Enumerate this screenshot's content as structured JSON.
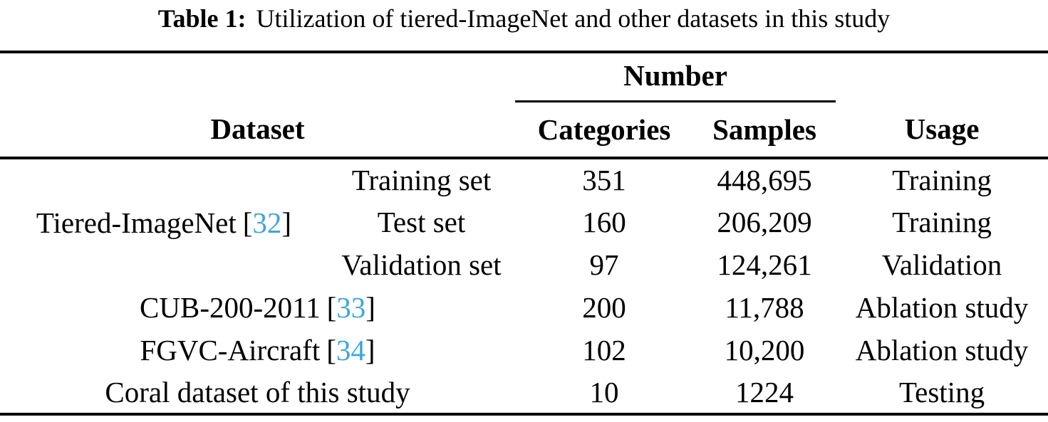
{
  "caption": {
    "label": "Table 1:",
    "text": "Utilization of tiered-ImageNet and other datasets in this study"
  },
  "colors": {
    "citation_blue": "#3ea6dd",
    "text": "#000000",
    "rule": "#000000",
    "background": "#ffffff"
  },
  "table": {
    "headers": {
      "dataset": "Dataset",
      "number": "Number",
      "categories": "Categories",
      "samples": "Samples",
      "usage": "Usage"
    },
    "rows": [
      {
        "dataset": "Tiered-ImageNet",
        "cite_open": "[",
        "ref": "32",
        "cite_close": "]",
        "subset": "Training set",
        "categories": "351",
        "samples": "448,695",
        "usage": "Training"
      },
      {
        "subset": "Test set",
        "categories": "160",
        "samples": "206,209",
        "usage": "Training"
      },
      {
        "subset": "Validation set",
        "categories": "97",
        "samples": "124,261",
        "usage": "Validation"
      },
      {
        "dataset": "CUB-200-2011",
        "cite_open": "[",
        "ref": "33",
        "cite_close": "]",
        "categories": "200",
        "samples": "11,788",
        "usage": "Ablation study"
      },
      {
        "dataset": "FGVC-Aircraft",
        "cite_open": "[",
        "ref": "34",
        "cite_close": "]",
        "categories": "102",
        "samples": "10,200",
        "usage": "Ablation study"
      },
      {
        "dataset": "Coral dataset of this study",
        "categories": "10",
        "samples": "1224",
        "usage": "Testing"
      }
    ]
  }
}
